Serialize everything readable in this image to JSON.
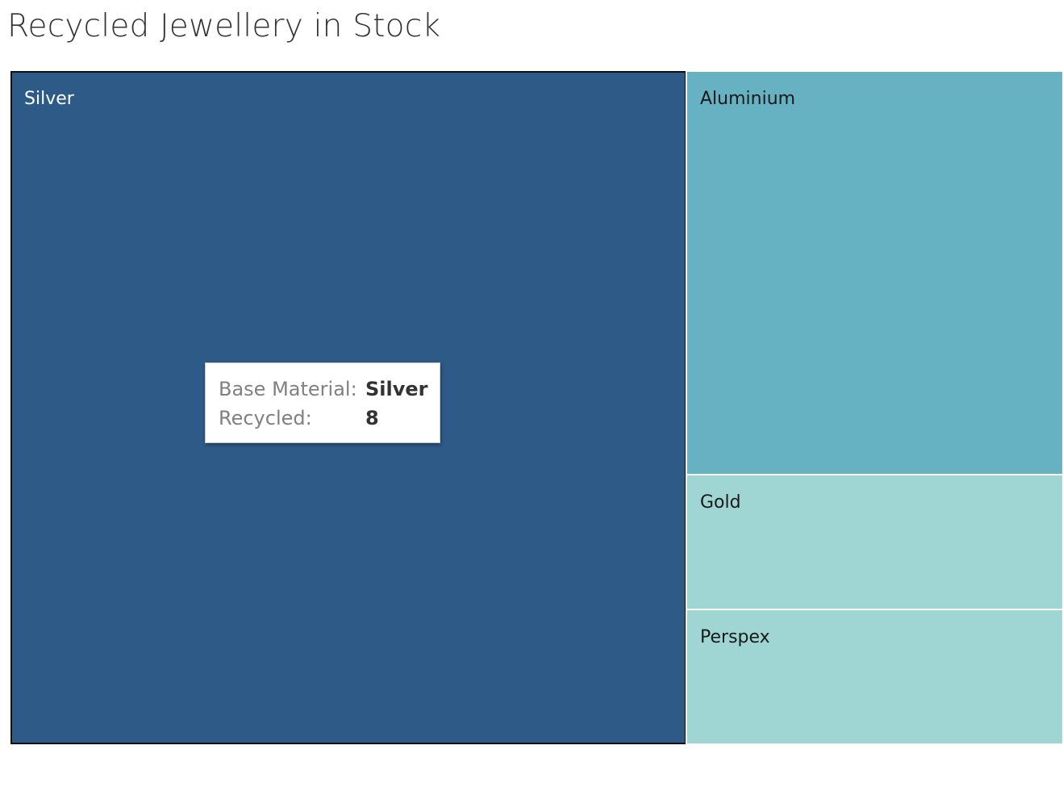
{
  "chart_data": {
    "type": "treemap",
    "title": "Recycled Jewellery in Stock",
    "measure": "Recycled",
    "dimension": "Base Material",
    "items": [
      {
        "label": "Silver",
        "value": 8,
        "color": "#2e5a87",
        "text_color": "#ffffff",
        "selected": true
      },
      {
        "label": "Aluminium",
        "value": 3,
        "color": "#66b1c2",
        "text_color": "#1a1a1a"
      },
      {
        "label": "Gold",
        "value": 1,
        "color": "#9fd5d2",
        "text_color": "#1a1a1a"
      },
      {
        "label": "Perspex",
        "value": 1,
        "color": "#9fd5d2",
        "text_color": "#1a1a1a"
      }
    ]
  },
  "tooltip": {
    "key1": "Base Material:",
    "val1": "Silver",
    "key2": "Recycled:",
    "val2": "8"
  }
}
